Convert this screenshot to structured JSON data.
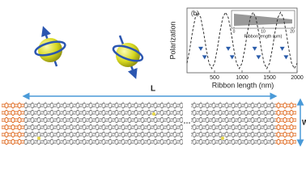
{
  "chart_data": {
    "type": "line",
    "panel_label": "(b)",
    "ylabel": "Polarization",
    "xlabel": "Ribbon length (nm)",
    "xlim": [
      0,
      2000
    ],
    "xticks": [
      500,
      1000,
      1500,
      2000
    ],
    "ylim": [
      -1.15,
      1.15
    ],
    "series": [
      {
        "color": "#333333",
        "style": "dashed",
        "x": [
          0,
          50,
          100,
          150,
          200,
          250,
          300,
          350,
          400,
          450,
          500,
          550,
          600,
          650,
          700,
          750,
          800,
          850,
          900,
          950,
          1000,
          1050,
          1100,
          1150,
          1200,
          1250,
          1300,
          1350,
          1400,
          1450,
          1500,
          1550,
          1600,
          1650,
          1700,
          1750,
          1800,
          1850,
          1900,
          1950,
          2000
        ],
        "values": [
          -0.81,
          -0.31,
          0.31,
          0.81,
          1,
          0.81,
          0.31,
          -0.31,
          -0.81,
          -1,
          -0.81,
          -0.31,
          0.31,
          0.81,
          1,
          0.81,
          0.31,
          -0.31,
          -0.81,
          -1,
          -0.81,
          -0.31,
          0.31,
          0.81,
          1,
          0.81,
          0.31,
          -0.31,
          -0.81,
          -1,
          -0.81,
          -0.31,
          0.31,
          0.81,
          1,
          0.81,
          0.31,
          -0.31,
          -0.81,
          -1,
          -0.81
        ]
      },
      {
        "color": "#2a5caa",
        "style": "triangle",
        "x": [
          250,
          320,
          750,
          820,
          1230,
          1300,
          1730,
          1800
        ],
        "values": [
          -0.3,
          -0.6,
          -0.3,
          -0.6,
          -0.3,
          -0.6,
          -0.3,
          -0.6
        ]
      }
    ],
    "inset": {
      "xlabel": "Ribbon length (μm)",
      "xlim": [
        0,
        20
      ],
      "xticks": [
        0,
        10,
        20
      ]
    }
  },
  "diagram": {
    "length_label": "L",
    "width_label": "W"
  }
}
